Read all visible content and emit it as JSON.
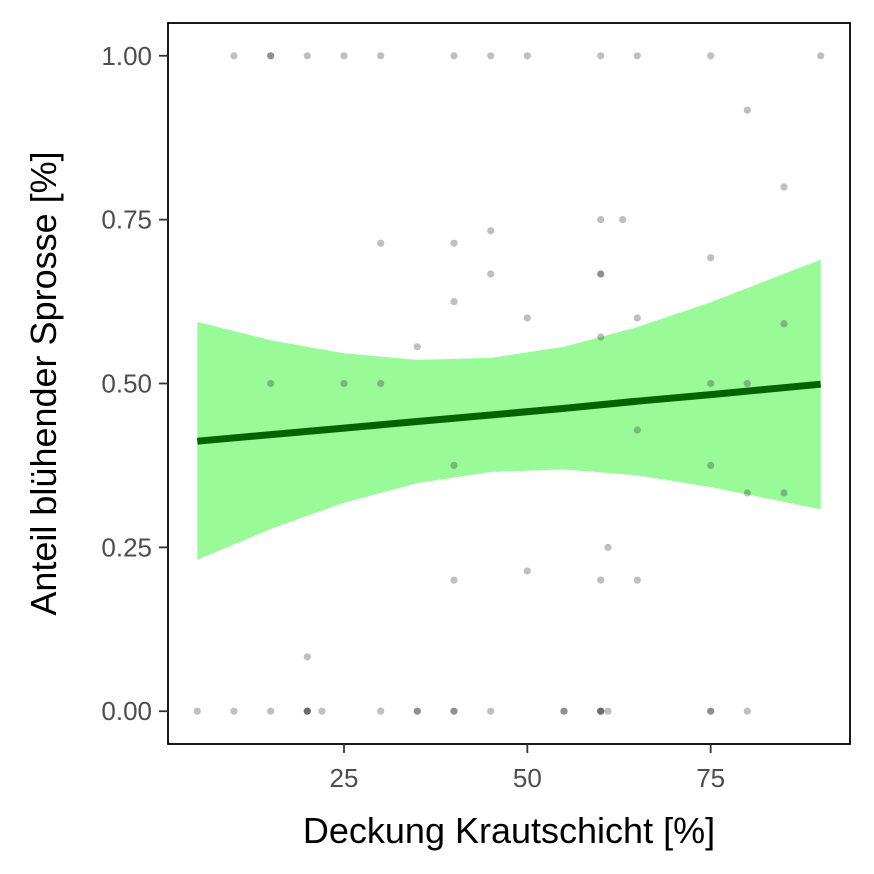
{
  "chart_data": {
    "type": "scatter",
    "title": "",
    "xlabel": "Deckung Krautschicht [%]",
    "ylabel": "Anteil blühender Sprosse [%]",
    "xlim": [
      1,
      94
    ],
    "ylim": [
      -0.05,
      1.05
    ],
    "x_ticks": [
      25,
      50,
      75
    ],
    "x_tick_labels": [
      "25",
      "50",
      "75"
    ],
    "y_ticks": [
      0,
      0.25,
      0.5,
      0.75,
      1
    ],
    "y_tick_labels": [
      "0.00",
      "0.25",
      "0.50",
      "0.75",
      "1.00"
    ],
    "grid": false,
    "colors": {
      "points": "#000000",
      "fit_line": "#006400",
      "ci_band": "#98fb98",
      "frame": "#000000"
    },
    "points": [
      {
        "x": 10,
        "y": 1
      },
      {
        "x": 15,
        "y": 1
      },
      {
        "x": 15,
        "y": 1
      },
      {
        "x": 20,
        "y": 1
      },
      {
        "x": 25,
        "y": 1
      },
      {
        "x": 30,
        "y": 1
      },
      {
        "x": 40,
        "y": 1
      },
      {
        "x": 45,
        "y": 1
      },
      {
        "x": 50,
        "y": 1
      },
      {
        "x": 60,
        "y": 1
      },
      {
        "x": 65,
        "y": 1
      },
      {
        "x": 75,
        "y": 1
      },
      {
        "x": 90,
        "y": 1
      },
      {
        "x": 80,
        "y": 0.917
      },
      {
        "x": 85,
        "y": 0.8
      },
      {
        "x": 60,
        "y": 0.75
      },
      {
        "x": 63,
        "y": 0.75
      },
      {
        "x": 45,
        "y": 0.733
      },
      {
        "x": 30,
        "y": 0.714
      },
      {
        "x": 40,
        "y": 0.714
      },
      {
        "x": 75,
        "y": 0.692
      },
      {
        "x": 45,
        "y": 0.667
      },
      {
        "x": 60,
        "y": 0.667
      },
      {
        "x": 60,
        "y": 0.667
      },
      {
        "x": 40,
        "y": 0.625
      },
      {
        "x": 50,
        "y": 0.6
      },
      {
        "x": 65,
        "y": 0.6
      },
      {
        "x": 85,
        "y": 0.591
      },
      {
        "x": 60,
        "y": 0.571
      },
      {
        "x": 35,
        "y": 0.556
      },
      {
        "x": 15,
        "y": 0.5
      },
      {
        "x": 25,
        "y": 0.5
      },
      {
        "x": 30,
        "y": 0.5
      },
      {
        "x": 75,
        "y": 0.5
      },
      {
        "x": 80,
        "y": 0.5
      },
      {
        "x": 65,
        "y": 0.429
      },
      {
        "x": 40,
        "y": 0.375
      },
      {
        "x": 75,
        "y": 0.375
      },
      {
        "x": 80,
        "y": 0.333
      },
      {
        "x": 85,
        "y": 0.333
      },
      {
        "x": 61,
        "y": 0.25
      },
      {
        "x": 50,
        "y": 0.214
      },
      {
        "x": 40,
        "y": 0.2
      },
      {
        "x": 60,
        "y": 0.2
      },
      {
        "x": 65,
        "y": 0.2
      },
      {
        "x": 20,
        "y": 0.083
      },
      {
        "x": 5,
        "y": 0
      },
      {
        "x": 10,
        "y": 0
      },
      {
        "x": 15,
        "y": 0
      },
      {
        "x": 20,
        "y": 0
      },
      {
        "x": 20,
        "y": 0
      },
      {
        "x": 20,
        "y": 0
      },
      {
        "x": 22,
        "y": 0
      },
      {
        "x": 30,
        "y": 0
      },
      {
        "x": 35,
        "y": 0
      },
      {
        "x": 35,
        "y": 0
      },
      {
        "x": 40,
        "y": 0
      },
      {
        "x": 40,
        "y": 0
      },
      {
        "x": 45,
        "y": 0
      },
      {
        "x": 55,
        "y": 0
      },
      {
        "x": 55,
        "y": 0
      },
      {
        "x": 60,
        "y": 0
      },
      {
        "x": 60,
        "y": 0
      },
      {
        "x": 60,
        "y": 0
      },
      {
        "x": 61,
        "y": 0
      },
      {
        "x": 75,
        "y": 0
      },
      {
        "x": 75,
        "y": 0
      },
      {
        "x": 80,
        "y": 0
      }
    ],
    "fit": {
      "x": [
        5,
        15,
        25,
        35,
        45,
        55,
        65,
        75,
        90
      ],
      "y": [
        0.412,
        0.422,
        0.432,
        0.442,
        0.452,
        0.462,
        0.473,
        0.483,
        0.499
      ],
      "lower": [
        0.231,
        0.278,
        0.318,
        0.348,
        0.365,
        0.369,
        0.36,
        0.342,
        0.308
      ],
      "upper": [
        0.594,
        0.566,
        0.546,
        0.536,
        0.539,
        0.556,
        0.586,
        0.624,
        0.689
      ]
    }
  }
}
